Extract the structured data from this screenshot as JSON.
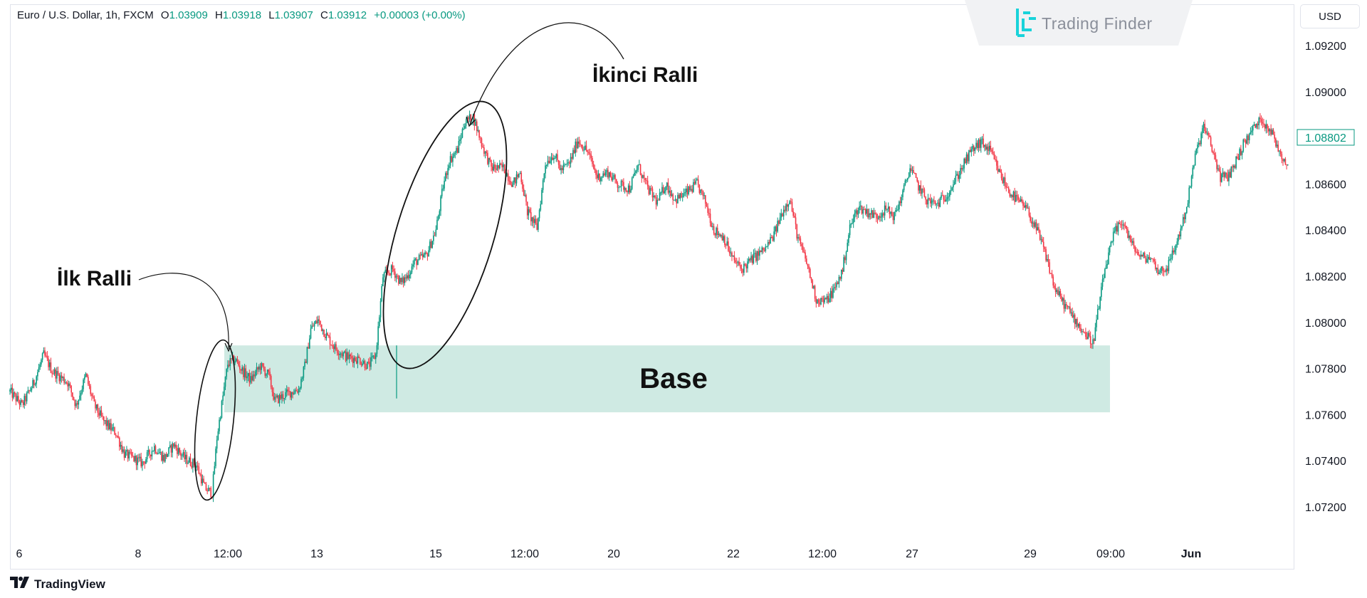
{
  "legend": {
    "symbol": "Euro / U.S. Dollar, 1h, FXCM",
    "open_key": "O",
    "open": "1.03909",
    "high_key": "H",
    "high": "1.03918",
    "low_key": "L",
    "low": "1.03907",
    "close_key": "C",
    "close": "1.03912",
    "change": "+0.00003 (+0.00%)"
  },
  "logo": {
    "text": "Trading Finder",
    "color": "#19d3da"
  },
  "currency": {
    "label": "USD"
  },
  "brand": {
    "text": "TradingView"
  },
  "colors": {
    "up": "#089981",
    "down": "#f23645",
    "zone": "#cfeae3",
    "last_price": "#089981"
  },
  "chart_data": {
    "type": "candlestick",
    "y_ticks": [
      "1.09200",
      "1.09000",
      "1.08600",
      "1.08400",
      "1.08200",
      "1.08000",
      "1.07800",
      "1.07600",
      "1.07400",
      "1.07200"
    ],
    "y_range": [
      1.0712,
      1.0933
    ],
    "x_ticks": [
      "6",
      "8",
      "12:00",
      "13",
      "15",
      "12:00",
      "20",
      "22",
      "12:00",
      "27",
      "29",
      "09:00",
      "Jun"
    ],
    "last_price": "1.08802",
    "grid": false,
    "path": [
      [
        0,
        1.077
      ],
      [
        10,
        1.0764
      ],
      [
        20,
        1.0774
      ],
      [
        28,
        1.0786
      ],
      [
        35,
        1.0779
      ],
      [
        48,
        1.0774
      ],
      [
        55,
        1.0764
      ],
      [
        63,
        1.0777
      ],
      [
        70,
        1.0764
      ],
      [
        78,
        1.0757
      ],
      [
        88,
        1.0752
      ],
      [
        95,
        1.0743
      ],
      [
        110,
        1.0739
      ],
      [
        120,
        1.0746
      ],
      [
        128,
        1.0741
      ],
      [
        136,
        1.0747
      ],
      [
        145,
        1.0741
      ],
      [
        155,
        1.0738
      ],
      [
        162,
        1.0728
      ],
      [
        168,
        1.0726
      ],
      [
        172,
        1.075
      ],
      [
        177,
        1.0768
      ],
      [
        181,
        1.0782
      ],
      [
        187,
        1.0784
      ],
      [
        193,
        1.0779
      ],
      [
        200,
        1.0775
      ],
      [
        208,
        1.0781
      ],
      [
        215,
        1.0777
      ],
      [
        220,
        1.0766
      ],
      [
        230,
        1.0769
      ],
      [
        240,
        1.0771
      ],
      [
        245,
        1.0781
      ],
      [
        250,
        1.0797
      ],
      [
        256,
        1.0801
      ],
      [
        262,
        1.0795
      ],
      [
        270,
        1.0789
      ],
      [
        280,
        1.0785
      ],
      [
        290,
        1.0784
      ],
      [
        298,
        1.0781
      ],
      [
        304,
        1.0786
      ],
      [
        310,
        1.082
      ],
      [
        318,
        1.0823
      ],
      [
        325,
        1.0817
      ],
      [
        330,
        1.082
      ],
      [
        336,
        1.0826
      ],
      [
        346,
        1.0829
      ],
      [
        354,
        1.084
      ],
      [
        360,
        1.0859
      ],
      [
        365,
        1.087
      ],
      [
        372,
        1.0875
      ],
      [
        378,
        1.0887
      ],
      [
        385,
        1.0889
      ],
      [
        393,
        1.0876
      ],
      [
        400,
        1.0867
      ],
      [
        410,
        1.0867
      ],
      [
        418,
        1.086
      ],
      [
        424,
        1.0865
      ],
      [
        430,
        1.0848
      ],
      [
        438,
        1.0841
      ],
      [
        445,
        1.0869
      ],
      [
        452,
        1.0873
      ],
      [
        458,
        1.0866
      ],
      [
        465,
        1.0869
      ],
      [
        472,
        1.0879
      ],
      [
        480,
        1.0874
      ],
      [
        488,
        1.0863
      ],
      [
        497,
        1.0865
      ],
      [
        505,
        1.086
      ],
      [
        515,
        1.0858
      ],
      [
        522,
        1.0868
      ],
      [
        530,
        1.0858
      ],
      [
        538,
        1.0852
      ],
      [
        545,
        1.086
      ],
      [
        553,
        1.0853
      ],
      [
        562,
        1.0856
      ],
      [
        571,
        1.086
      ],
      [
        578,
        1.0852
      ],
      [
        585,
        1.084
      ],
      [
        593,
        1.0837
      ],
      [
        600,
        1.0828
      ],
      [
        608,
        1.0823
      ],
      [
        618,
        1.0828
      ],
      [
        628,
        1.0832
      ],
      [
        635,
        1.0838
      ],
      [
        642,
        1.0848
      ],
      [
        648,
        1.0854
      ],
      [
        655,
        1.0836
      ],
      [
        662,
        1.0826
      ],
      [
        670,
        1.081
      ],
      [
        678,
        1.0809
      ],
      [
        686,
        1.0815
      ],
      [
        692,
        1.0823
      ],
      [
        698,
        1.0841
      ],
      [
        705,
        1.085
      ],
      [
        712,
        1.0848
      ],
      [
        720,
        1.0846
      ],
      [
        728,
        1.0849
      ],
      [
        735,
        1.0846
      ],
      [
        742,
        1.0856
      ],
      [
        748,
        1.0867
      ],
      [
        755,
        1.0859
      ],
      [
        762,
        1.0853
      ],
      [
        770,
        1.0851
      ],
      [
        778,
        1.0855
      ],
      [
        785,
        1.0861
      ],
      [
        792,
        1.0868
      ],
      [
        800,
        1.0875
      ],
      [
        807,
        1.0878
      ],
      [
        815,
        1.0874
      ],
      [
        822,
        1.0865
      ],
      [
        830,
        1.0857
      ],
      [
        837,
        1.0853
      ],
      [
        845,
        1.0849
      ],
      [
        855,
        1.0838
      ],
      [
        862,
        1.0827
      ],
      [
        868,
        1.0815
      ],
      [
        876,
        1.0808
      ],
      [
        884,
        1.0802
      ],
      [
        892,
        1.0796
      ],
      [
        900,
        1.0791
      ],
      [
        910,
        1.0823
      ],
      [
        918,
        1.0839
      ],
      [
        925,
        1.0844
      ],
      [
        932,
        1.0834
      ],
      [
        940,
        1.0828
      ],
      [
        948,
        1.0828
      ],
      [
        955,
        1.0822
      ],
      [
        962,
        1.0824
      ],
      [
        970,
        1.0835
      ],
      [
        978,
        1.085
      ],
      [
        985,
        1.0872
      ],
      [
        992,
        1.0885
      ],
      [
        998,
        1.0877
      ],
      [
        1006,
        1.0863
      ],
      [
        1012,
        1.0863
      ],
      [
        1018,
        1.0869
      ],
      [
        1025,
        1.0877
      ],
      [
        1033,
        1.0884
      ],
      [
        1040,
        1.0888
      ],
      [
        1048,
        1.0883
      ],
      [
        1055,
        1.0874
      ],
      [
        1062,
        1.0868
      ]
    ],
    "annotations": [
      "İlk Ralli",
      "İkinci Ralli",
      "Base"
    ]
  }
}
